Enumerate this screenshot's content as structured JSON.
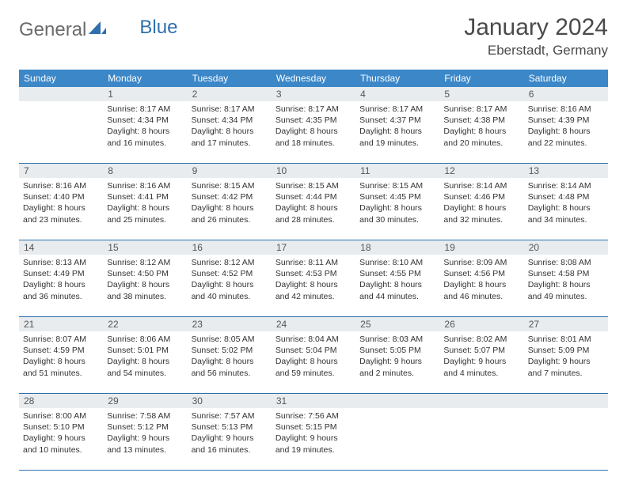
{
  "brand": {
    "part1": "General",
    "part2": "Blue"
  },
  "title": "January 2024",
  "location": "Eberstadt, Germany",
  "colors": {
    "header_bg": "#3b87c8",
    "border": "#2f6fad",
    "daynum_bg": "#e8ecef",
    "text": "#333333",
    "title_text": "#4a4a4a",
    "logo_gray": "#6b6b6b",
    "logo_blue": "#2f6fad"
  },
  "day_names": [
    "Sunday",
    "Monday",
    "Tuesday",
    "Wednesday",
    "Thursday",
    "Friday",
    "Saturday"
  ],
  "weeks": [
    {
      "nums": [
        "",
        "1",
        "2",
        "3",
        "4",
        "5",
        "6"
      ],
      "cells": [
        null,
        {
          "sunrise": "Sunrise: 8:17 AM",
          "sunset": "Sunset: 4:34 PM",
          "day1": "Daylight: 8 hours",
          "day2": "and 16 minutes."
        },
        {
          "sunrise": "Sunrise: 8:17 AM",
          "sunset": "Sunset: 4:34 PM",
          "day1": "Daylight: 8 hours",
          "day2": "and 17 minutes."
        },
        {
          "sunrise": "Sunrise: 8:17 AM",
          "sunset": "Sunset: 4:35 PM",
          "day1": "Daylight: 8 hours",
          "day2": "and 18 minutes."
        },
        {
          "sunrise": "Sunrise: 8:17 AM",
          "sunset": "Sunset: 4:37 PM",
          "day1": "Daylight: 8 hours",
          "day2": "and 19 minutes."
        },
        {
          "sunrise": "Sunrise: 8:17 AM",
          "sunset": "Sunset: 4:38 PM",
          "day1": "Daylight: 8 hours",
          "day2": "and 20 minutes."
        },
        {
          "sunrise": "Sunrise: 8:16 AM",
          "sunset": "Sunset: 4:39 PM",
          "day1": "Daylight: 8 hours",
          "day2": "and 22 minutes."
        }
      ]
    },
    {
      "nums": [
        "7",
        "8",
        "9",
        "10",
        "11",
        "12",
        "13"
      ],
      "cells": [
        {
          "sunrise": "Sunrise: 8:16 AM",
          "sunset": "Sunset: 4:40 PM",
          "day1": "Daylight: 8 hours",
          "day2": "and 23 minutes."
        },
        {
          "sunrise": "Sunrise: 8:16 AM",
          "sunset": "Sunset: 4:41 PM",
          "day1": "Daylight: 8 hours",
          "day2": "and 25 minutes."
        },
        {
          "sunrise": "Sunrise: 8:15 AM",
          "sunset": "Sunset: 4:42 PM",
          "day1": "Daylight: 8 hours",
          "day2": "and 26 minutes."
        },
        {
          "sunrise": "Sunrise: 8:15 AM",
          "sunset": "Sunset: 4:44 PM",
          "day1": "Daylight: 8 hours",
          "day2": "and 28 minutes."
        },
        {
          "sunrise": "Sunrise: 8:15 AM",
          "sunset": "Sunset: 4:45 PM",
          "day1": "Daylight: 8 hours",
          "day2": "and 30 minutes."
        },
        {
          "sunrise": "Sunrise: 8:14 AM",
          "sunset": "Sunset: 4:46 PM",
          "day1": "Daylight: 8 hours",
          "day2": "and 32 minutes."
        },
        {
          "sunrise": "Sunrise: 8:14 AM",
          "sunset": "Sunset: 4:48 PM",
          "day1": "Daylight: 8 hours",
          "day2": "and 34 minutes."
        }
      ]
    },
    {
      "nums": [
        "14",
        "15",
        "16",
        "17",
        "18",
        "19",
        "20"
      ],
      "cells": [
        {
          "sunrise": "Sunrise: 8:13 AM",
          "sunset": "Sunset: 4:49 PM",
          "day1": "Daylight: 8 hours",
          "day2": "and 36 minutes."
        },
        {
          "sunrise": "Sunrise: 8:12 AM",
          "sunset": "Sunset: 4:50 PM",
          "day1": "Daylight: 8 hours",
          "day2": "and 38 minutes."
        },
        {
          "sunrise": "Sunrise: 8:12 AM",
          "sunset": "Sunset: 4:52 PM",
          "day1": "Daylight: 8 hours",
          "day2": "and 40 minutes."
        },
        {
          "sunrise": "Sunrise: 8:11 AM",
          "sunset": "Sunset: 4:53 PM",
          "day1": "Daylight: 8 hours",
          "day2": "and 42 minutes."
        },
        {
          "sunrise": "Sunrise: 8:10 AM",
          "sunset": "Sunset: 4:55 PM",
          "day1": "Daylight: 8 hours",
          "day2": "and 44 minutes."
        },
        {
          "sunrise": "Sunrise: 8:09 AM",
          "sunset": "Sunset: 4:56 PM",
          "day1": "Daylight: 8 hours",
          "day2": "and 46 minutes."
        },
        {
          "sunrise": "Sunrise: 8:08 AM",
          "sunset": "Sunset: 4:58 PM",
          "day1": "Daylight: 8 hours",
          "day2": "and 49 minutes."
        }
      ]
    },
    {
      "nums": [
        "21",
        "22",
        "23",
        "24",
        "25",
        "26",
        "27"
      ],
      "cells": [
        {
          "sunrise": "Sunrise: 8:07 AM",
          "sunset": "Sunset: 4:59 PM",
          "day1": "Daylight: 8 hours",
          "day2": "and 51 minutes."
        },
        {
          "sunrise": "Sunrise: 8:06 AM",
          "sunset": "Sunset: 5:01 PM",
          "day1": "Daylight: 8 hours",
          "day2": "and 54 minutes."
        },
        {
          "sunrise": "Sunrise: 8:05 AM",
          "sunset": "Sunset: 5:02 PM",
          "day1": "Daylight: 8 hours",
          "day2": "and 56 minutes."
        },
        {
          "sunrise": "Sunrise: 8:04 AM",
          "sunset": "Sunset: 5:04 PM",
          "day1": "Daylight: 8 hours",
          "day2": "and 59 minutes."
        },
        {
          "sunrise": "Sunrise: 8:03 AM",
          "sunset": "Sunset: 5:05 PM",
          "day1": "Daylight: 9 hours",
          "day2": "and 2 minutes."
        },
        {
          "sunrise": "Sunrise: 8:02 AM",
          "sunset": "Sunset: 5:07 PM",
          "day1": "Daylight: 9 hours",
          "day2": "and 4 minutes."
        },
        {
          "sunrise": "Sunrise: 8:01 AM",
          "sunset": "Sunset: 5:09 PM",
          "day1": "Daylight: 9 hours",
          "day2": "and 7 minutes."
        }
      ]
    },
    {
      "nums": [
        "28",
        "29",
        "30",
        "31",
        "",
        "",
        ""
      ],
      "cells": [
        {
          "sunrise": "Sunrise: 8:00 AM",
          "sunset": "Sunset: 5:10 PM",
          "day1": "Daylight: 9 hours",
          "day2": "and 10 minutes."
        },
        {
          "sunrise": "Sunrise: 7:58 AM",
          "sunset": "Sunset: 5:12 PM",
          "day1": "Daylight: 9 hours",
          "day2": "and 13 minutes."
        },
        {
          "sunrise": "Sunrise: 7:57 AM",
          "sunset": "Sunset: 5:13 PM",
          "day1": "Daylight: 9 hours",
          "day2": "and 16 minutes."
        },
        {
          "sunrise": "Sunrise: 7:56 AM",
          "sunset": "Sunset: 5:15 PM",
          "day1": "Daylight: 9 hours",
          "day2": "and 19 minutes."
        },
        null,
        null,
        null
      ]
    }
  ]
}
